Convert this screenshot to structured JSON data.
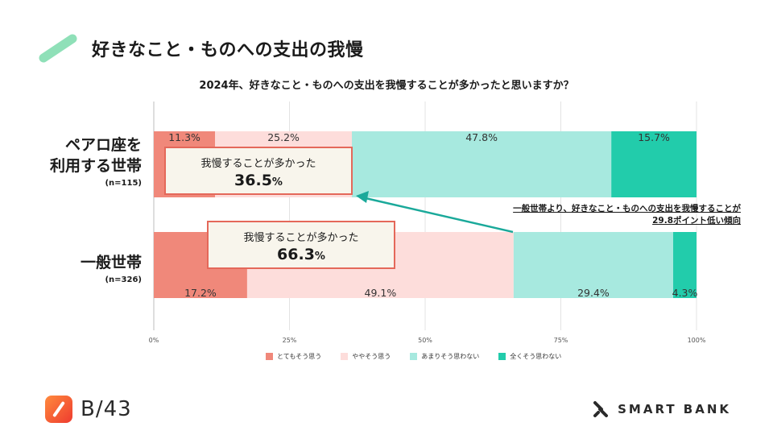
{
  "slide": {
    "title": "好きなこと・ものへの支出の我慢",
    "question": "2024年、好きなこと・ものへの支出を我慢することが多かったと思いますか？"
  },
  "categories": [
    {
      "name_line1": "ペアロ座を",
      "name_line2": "利用する世帯",
      "n": "(n=115)"
    },
    {
      "name_line1": "一般世帯",
      "name_line2": "",
      "n": "(n=326)"
    }
  ],
  "callouts": [
    {
      "text": "我慢することが多かった",
      "value": "36.5",
      "unit": "%"
    },
    {
      "text": "我慢することが多かった",
      "value": "66.3",
      "unit": "%"
    }
  ],
  "note": {
    "line1": "一般世帯より、好きなこと・ものへの支出を我慢することが",
    "line2": "29.8ポイント低い傾向"
  },
  "footer": {
    "page": "B/43",
    "brand": "SMART BANK"
  },
  "colors": {
    "series": [
      "#f0887a",
      "#fddddb",
      "#a7e9df",
      "#22ccab"
    ],
    "callout_border": "#e4685a",
    "arrow": "#1aa99a",
    "title_mark": "#8fe0b8"
  },
  "chart_data": {
    "type": "bar",
    "orientation": "horizontal",
    "stacked": true,
    "categories": [
      "ペアロ座を利用する世帯",
      "一般世帯"
    ],
    "series": [
      {
        "name": "とてもそう思う",
        "values": [
          11.3,
          17.2
        ],
        "labels": [
          "11.3%",
          "17.2%"
        ]
      },
      {
        "name": "ややそう思う",
        "values": [
          25.2,
          49.1
        ],
        "labels": [
          "25.2%",
          "49.1%"
        ]
      },
      {
        "name": "あまりそう思わない",
        "values": [
          47.8,
          29.4
        ],
        "labels": [
          "47.8%",
          "29.4%"
        ]
      },
      {
        "name": "全くそう思わない",
        "values": [
          15.7,
          4.3
        ],
        "labels": [
          "15.7%",
          "4.3%"
        ]
      }
    ],
    "xlim": [
      0,
      100
    ],
    "xticks": [
      "0%",
      "25%",
      "50%",
      "75%",
      "100%"
    ],
    "grid": true,
    "legend": "bottom"
  }
}
